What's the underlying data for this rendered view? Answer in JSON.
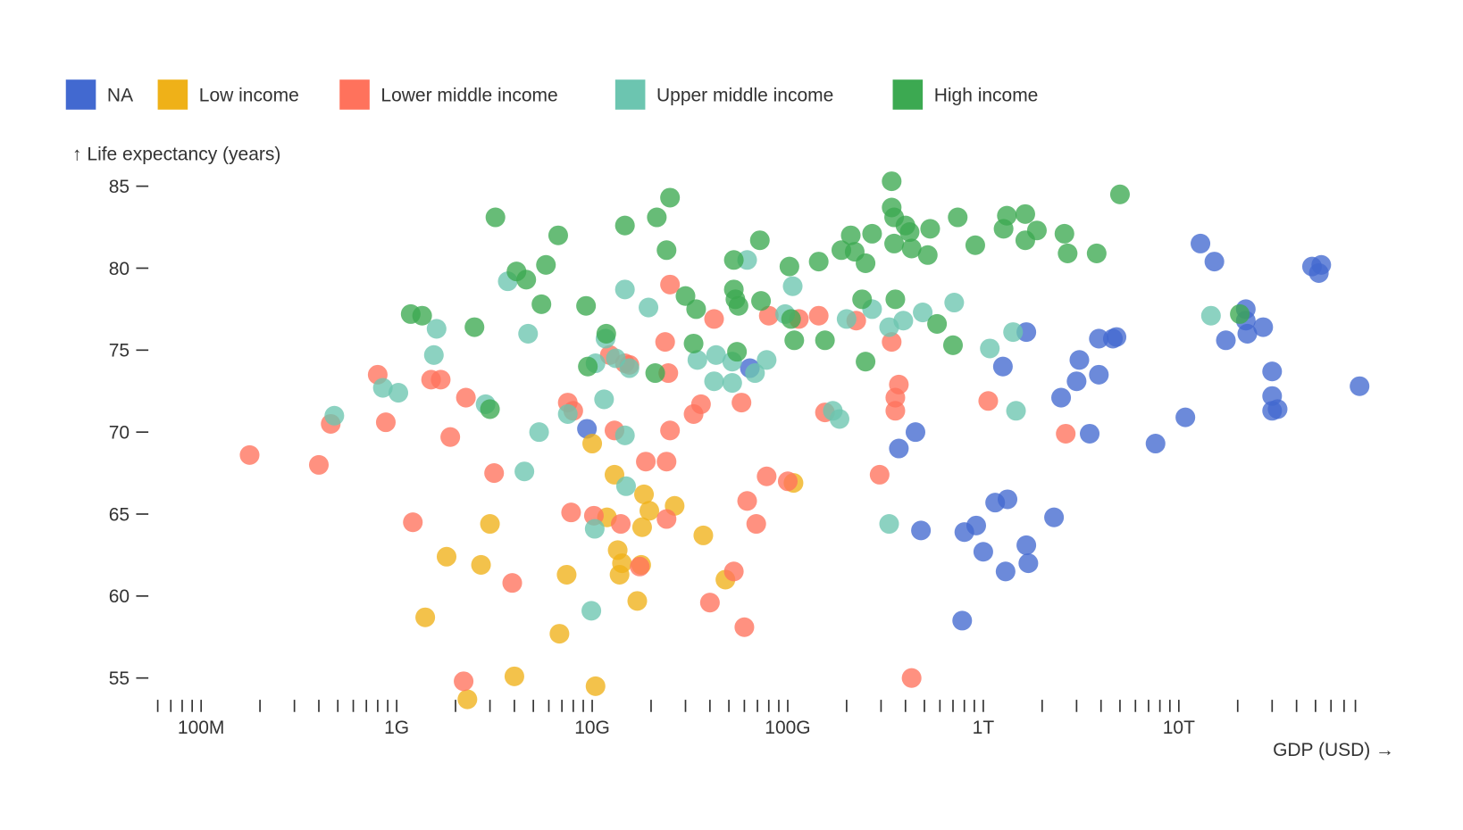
{
  "chart_data": {
    "type": "scatter",
    "xlabel": "GDP (USD) →",
    "ylabel": "↑ Life expectancy (years)",
    "x_scale": "log",
    "xlim": [
      60000000,
      85000000000000
    ],
    "ylim": [
      53.5,
      85.5
    ],
    "grid": false,
    "legend_placement": "top-left",
    "y_ticks": [
      55,
      60,
      65,
      70,
      75,
      80,
      85
    ],
    "x_tick_labels": [
      {
        "value": 100000000,
        "label": "100M"
      },
      {
        "value": 1000000000,
        "label": "1G"
      },
      {
        "value": 10000000000,
        "label": "10G"
      },
      {
        "value": 100000000000,
        "label": "100G"
      },
      {
        "value": 1000000000000,
        "label": "1T"
      },
      {
        "value": 10000000000000,
        "label": "10T"
      }
    ],
    "series": [
      {
        "name": "NA",
        "color": "#4269d0",
        "points": [
          [
            9400000000.0,
            70.2
          ],
          [
            64000000000.0,
            73.9
          ],
          [
            1260000000000.0,
            74.0
          ],
          [
            1660000000000.0,
            76.1
          ],
          [
            450000000000.0,
            70.0
          ],
          [
            370000000000.0,
            69.0
          ],
          [
            480000000000.0,
            64.0
          ],
          [
            800000000000.0,
            63.9
          ],
          [
            920000000000.0,
            64.3
          ],
          [
            780000000000.0,
            58.5
          ],
          [
            1000000000000.0,
            62.7
          ],
          [
            1150000000000.0,
            65.7
          ],
          [
            1330000000000.0,
            65.9
          ],
          [
            1300000000000.0,
            61.5
          ],
          [
            1700000000000.0,
            62.0
          ],
          [
            1660000000000.0,
            63.1
          ],
          [
            2300000000000.0,
            64.8
          ],
          [
            2500000000000.0,
            72.1
          ],
          [
            3000000000000.0,
            73.1
          ],
          [
            3100000000000.0,
            74.4
          ],
          [
            3900000000000.0,
            75.7
          ],
          [
            3900000000000.0,
            73.5
          ],
          [
            4600000000000.0,
            75.7
          ],
          [
            4800000000000.0,
            75.8
          ],
          [
            3500000000000.0,
            69.9
          ],
          [
            7600000000000.0,
            69.3
          ],
          [
            10800000000000.0,
            70.9
          ],
          [
            12900000000000.0,
            81.5
          ],
          [
            15200000000000.0,
            80.4
          ],
          [
            17400000000000.0,
            75.6
          ],
          [
            22000000000000.0,
            77.5
          ],
          [
            22400000000000.0,
            76.0
          ],
          [
            22000000000000.0,
            76.8
          ],
          [
            27000000000000.0,
            76.4
          ],
          [
            30000000000000.0,
            73.7
          ],
          [
            30000000000000.0,
            72.2
          ],
          [
            30000000000000.0,
            71.3
          ],
          [
            32000000000000.0,
            71.4
          ],
          [
            48000000000000.0,
            80.1
          ],
          [
            53500000000000.0,
            80.2
          ],
          [
            52000000000000.0,
            79.7
          ],
          [
            84000000000000.0,
            72.8
          ]
        ]
      },
      {
        "name": "Low income",
        "color": "#efb118",
        "points": [
          [
            1400000000.0,
            58.7
          ],
          [
            1800000000.0,
            62.4
          ],
          [
            2700000000.0,
            61.9
          ],
          [
            3000000000.0,
            64.4
          ],
          [
            2300000000.0,
            53.7
          ],
          [
            4000000000.0,
            55.1
          ],
          [
            6800000000.0,
            57.7
          ],
          [
            7400000000.0,
            61.3
          ],
          [
            10400000000.0,
            54.5
          ],
          [
            10000000000.0,
            69.3
          ],
          [
            11900000000.0,
            64.8
          ],
          [
            13000000000.0,
            67.4
          ],
          [
            13500000000.0,
            62.8
          ],
          [
            13800000000.0,
            61.3
          ],
          [
            14200000000.0,
            62.0
          ],
          [
            18400000000.0,
            66.2
          ],
          [
            19600000000.0,
            65.2
          ],
          [
            18000000000.0,
            64.2
          ],
          [
            26400000000.0,
            65.5
          ],
          [
            17000000000.0,
            59.7
          ],
          [
            37000000000.0,
            63.7
          ],
          [
            48000000000.0,
            61.0
          ],
          [
            107000000000.0,
            66.9
          ],
          [
            17800000000.0,
            61.9
          ]
        ]
      },
      {
        "name": "Lower middle income",
        "color": "#ff725c",
        "points": [
          [
            177000000.0,
            68.6
          ],
          [
            400000000.0,
            68.0
          ],
          [
            460000000.0,
            70.5
          ],
          [
            800000000.0,
            73.5
          ],
          [
            880000000.0,
            70.6
          ],
          [
            1210000000.0,
            64.5
          ],
          [
            1500000000.0,
            73.2
          ],
          [
            1680000000.0,
            73.2
          ],
          [
            1880000000.0,
            69.7
          ],
          [
            2260000000.0,
            72.1
          ],
          [
            2200000000.0,
            54.8
          ],
          [
            3150000000.0,
            67.5
          ],
          [
            3900000000.0,
            60.8
          ],
          [
            7500000000.0,
            71.8
          ],
          [
            8000000000.0,
            71.3
          ],
          [
            7800000000.0,
            65.1
          ],
          [
            10200000000.0,
            64.9
          ],
          [
            12300000000.0,
            74.7
          ],
          [
            14700000000.0,
            74.2
          ],
          [
            15500000000.0,
            74.1
          ],
          [
            13000000000.0,
            70.1
          ],
          [
            14000000000.0,
            64.4
          ],
          [
            17500000000.0,
            61.8
          ],
          [
            18800000000.0,
            68.2
          ],
          [
            24000000000.0,
            68.2
          ],
          [
            24500000000.0,
            73.6
          ],
          [
            25000000000.0,
            70.1
          ],
          [
            24000000000.0,
            64.7
          ],
          [
            23600000000.0,
            75.5
          ],
          [
            25000000000.0,
            79.0
          ],
          [
            36000000000.0,
            71.7
          ],
          [
            33000000000.0,
            71.1
          ],
          [
            42000000000.0,
            76.9
          ],
          [
            58000000000.0,
            71.8
          ],
          [
            62000000000.0,
            65.8
          ],
          [
            69000000000.0,
            64.4
          ],
          [
            53000000000.0,
            61.5
          ],
          [
            40000000000.0,
            59.6
          ],
          [
            60000000000.0,
            58.1
          ],
          [
            78000000000.0,
            67.3
          ],
          [
            80000000000.0,
            77.1
          ],
          [
            114000000000.0,
            76.9
          ],
          [
            144000000000.0,
            77.1
          ],
          [
            224000000000.0,
            76.8
          ],
          [
            100000000000.0,
            67.0
          ],
          [
            155000000000.0,
            71.2
          ],
          [
            340000000000.0,
            75.5
          ],
          [
            370000000000.0,
            72.9
          ],
          [
            355000000000.0,
            72.1
          ],
          [
            355000000000.0,
            71.3
          ],
          [
            295000000000.0,
            67.4
          ],
          [
            430000000000.0,
            55.0
          ],
          [
            1060000000000.0,
            71.9
          ],
          [
            2640000000000.0,
            69.9
          ]
        ]
      },
      {
        "name": "Upper middle income",
        "color": "#6cc5b0",
        "points": [
          [
            480000000.0,
            71.0
          ],
          [
            850000000.0,
            72.7
          ],
          [
            1020000000.0,
            72.4
          ],
          [
            1600000000.0,
            76.3
          ],
          [
            1550000000.0,
            74.7
          ],
          [
            2850000000.0,
            71.7
          ],
          [
            3700000000.0,
            79.2
          ],
          [
            4700000000.0,
            76.0
          ],
          [
            5350000000.0,
            70.0
          ],
          [
            4500000000.0,
            67.6
          ],
          [
            7500000000.0,
            71.1
          ],
          [
            11700000000.0,
            75.7
          ],
          [
            10400000000.0,
            74.2
          ],
          [
            13200000000.0,
            74.5
          ],
          [
            15500000000.0,
            73.9
          ],
          [
            11500000000.0,
            72.0
          ],
          [
            14700000000.0,
            78.7
          ],
          [
            19400000000.0,
            77.6
          ],
          [
            14700000000.0,
            69.8
          ],
          [
            14900000000.0,
            66.7
          ],
          [
            10300000000.0,
            64.1
          ],
          [
            9900000000.0,
            59.1
          ],
          [
            62000000000.0,
            80.5
          ],
          [
            106000000000.0,
            78.9
          ],
          [
            97000000000.0,
            77.2
          ],
          [
            34500000000.0,
            74.4
          ],
          [
            43000000000.0,
            74.7
          ],
          [
            42000000000.0,
            73.1
          ],
          [
            52000000000.0,
            73.0
          ],
          [
            52000000000.0,
            74.3
          ],
          [
            68000000000.0,
            73.6
          ],
          [
            78000000000.0,
            74.4
          ],
          [
            200000000000.0,
            76.9
          ],
          [
            270000000000.0,
            77.5
          ],
          [
            330000000000.0,
            76.4
          ],
          [
            390000000000.0,
            76.8
          ],
          [
            490000000000.0,
            77.3
          ],
          [
            710000000000.0,
            77.9
          ],
          [
            170000000000.0,
            71.3
          ],
          [
            184000000000.0,
            70.8
          ],
          [
            1080000000000.0,
            75.1
          ],
          [
            1420000000000.0,
            76.1
          ],
          [
            1470000000000.0,
            71.3
          ],
          [
            14600000000000.0,
            77.1
          ],
          [
            330000000000.0,
            64.4
          ]
        ]
      },
      {
        "name": "High income",
        "color": "#3ca951",
        "points": [
          [
            3200000000.0,
            83.1
          ],
          [
            6700000000.0,
            82.0
          ],
          [
            14700000000.0,
            82.6
          ],
          [
            21400000000.0,
            83.1
          ],
          [
            25000000000.0,
            84.3
          ],
          [
            24000000000.0,
            81.1
          ],
          [
            4100000000.0,
            79.8
          ],
          [
            4600000000.0,
            79.3
          ],
          [
            5800000000.0,
            80.2
          ],
          [
            5500000000.0,
            77.8
          ],
          [
            1180000000.0,
            77.2
          ],
          [
            1350000000.0,
            77.1
          ],
          [
            2500000000.0,
            76.4
          ],
          [
            3000000000.0,
            71.4
          ],
          [
            9300000000.0,
            77.7
          ],
          [
            11800000000.0,
            76.0
          ],
          [
            9500000000.0,
            74.0
          ],
          [
            21000000000.0,
            73.6
          ],
          [
            30000000000.0,
            78.3
          ],
          [
            34000000000.0,
            77.5
          ],
          [
            33000000000.0,
            75.4
          ],
          [
            53000000000.0,
            80.5
          ],
          [
            72000000000.0,
            81.7
          ],
          [
            53000000000.0,
            78.7
          ],
          [
            54000000000.0,
            78.1
          ],
          [
            56000000000.0,
            77.7
          ],
          [
            73000000000.0,
            78.0
          ],
          [
            55000000000.0,
            74.9
          ],
          [
            102000000000.0,
            80.1
          ],
          [
            144000000000.0,
            80.4
          ],
          [
            104000000000.0,
            76.9
          ],
          [
            108000000000.0,
            75.6
          ],
          [
            155000000000.0,
            75.6
          ],
          [
            188000000000.0,
            81.1
          ],
          [
            210000000000.0,
            82.0
          ],
          [
            220000000000.0,
            81.0
          ],
          [
            250000000000.0,
            80.3
          ],
          [
            270000000000.0,
            82.1
          ],
          [
            340000000000.0,
            85.3
          ],
          [
            340000000000.0,
            83.7
          ],
          [
            350000000000.0,
            83.1
          ],
          [
            400000000000.0,
            82.6
          ],
          [
            350000000000.0,
            81.5
          ],
          [
            420000000000.0,
            82.2
          ],
          [
            430000000000.0,
            81.2
          ],
          [
            520000000000.0,
            80.8
          ],
          [
            535000000000.0,
            82.4
          ],
          [
            240000000000.0,
            78.1
          ],
          [
            355000000000.0,
            78.1
          ],
          [
            250000000000.0,
            74.3
          ],
          [
            580000000000.0,
            76.6
          ],
          [
            700000000000.0,
            75.3
          ],
          [
            740000000000.0,
            83.1
          ],
          [
            910000000000.0,
            81.4
          ],
          [
            1270000000000.0,
            82.4
          ],
          [
            1320000000000.0,
            83.2
          ],
          [
            1640000000000.0,
            83.3
          ],
          [
            1640000000000.0,
            81.7
          ],
          [
            1880000000000.0,
            82.3
          ],
          [
            2600000000000.0,
            82.1
          ],
          [
            2700000000000.0,
            80.9
          ],
          [
            3800000000000.0,
            80.9
          ],
          [
            5000000000000.0,
            84.5
          ],
          [
            20500000000000.0,
            77.2
          ]
        ]
      }
    ]
  }
}
